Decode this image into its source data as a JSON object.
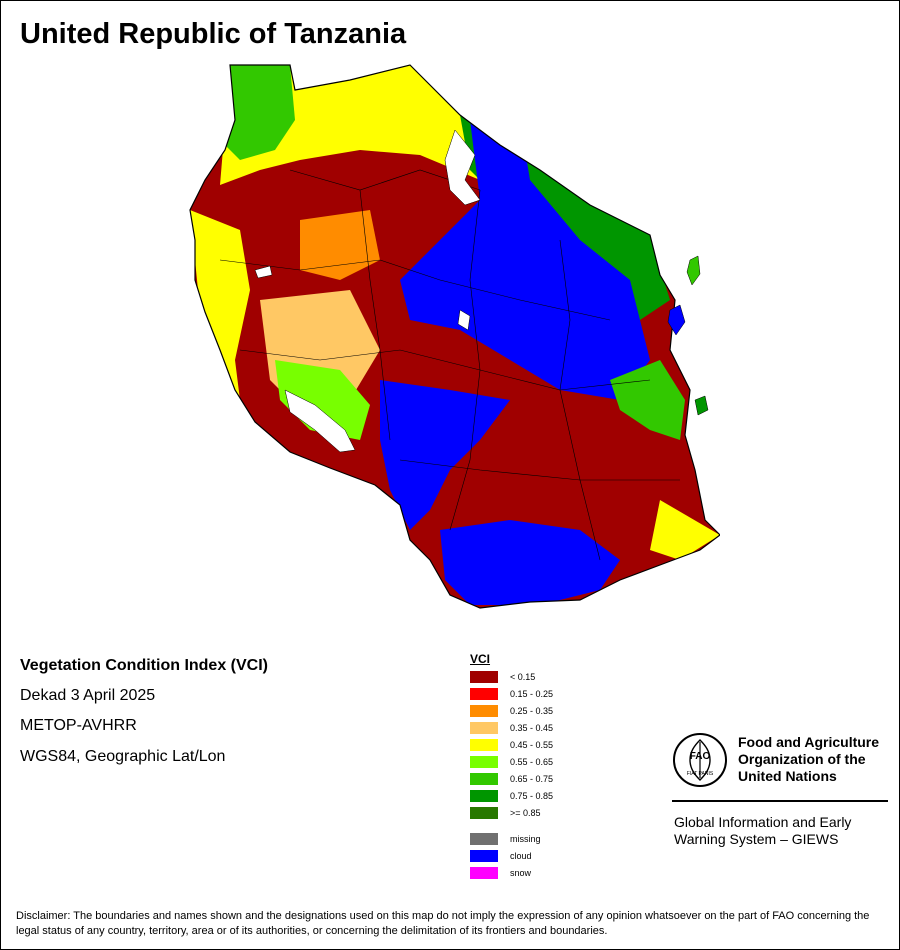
{
  "title": "United Republic of Tanzania",
  "info": {
    "heading": "Vegetation Condition Index (VCI)",
    "period": "Dekad 3 April 2025",
    "sensor": "METOP-AVHRR",
    "projection": "WGS84, Geographic Lat/Lon"
  },
  "legend": {
    "title": "VCI",
    "classes": [
      {
        "label": "< 0.15",
        "color": "#A00000"
      },
      {
        "label": "0.15 - 0.25",
        "color": "#FF0000"
      },
      {
        "label": "0.25 - 0.35",
        "color": "#FF8C00"
      },
      {
        "label": "0.35 - 0.45",
        "color": "#FFC864"
      },
      {
        "label": "0.45 - 0.55",
        "color": "#FFFF00"
      },
      {
        "label": "0.55 - 0.65",
        "color": "#78FF00"
      },
      {
        "label": "0.65 - 0.75",
        "color": "#32C800"
      },
      {
        "label": "0.75 - 0.85",
        "color": "#009600"
      },
      {
        "label": ">= 0.85",
        "color": "#287800"
      }
    ],
    "special": [
      {
        "label": "missing",
        "color": "#707070"
      },
      {
        "label": "cloud",
        "color": "#0000FF"
      },
      {
        "label": "snow",
        "color": "#FF00FF"
      }
    ]
  },
  "fao": {
    "logo_text": "FAO",
    "logo_motto": "FIAT PANIS",
    "name_line1": "Food and Agriculture",
    "name_line2": "Organization of the",
    "name_line3": "United Nations",
    "giews_line1": "Global Information and Early",
    "giews_line2": "Warning System – GIEWS"
  },
  "disclaimer": "Disclaimer: The boundaries and names shown and the designations used on this map do not imply the expression of any opinion whatsoever on the part of FAO concerning the legal status of any country, territory, area or of its authorities, or concerning the delimitation of its frontiers and boundaries."
}
